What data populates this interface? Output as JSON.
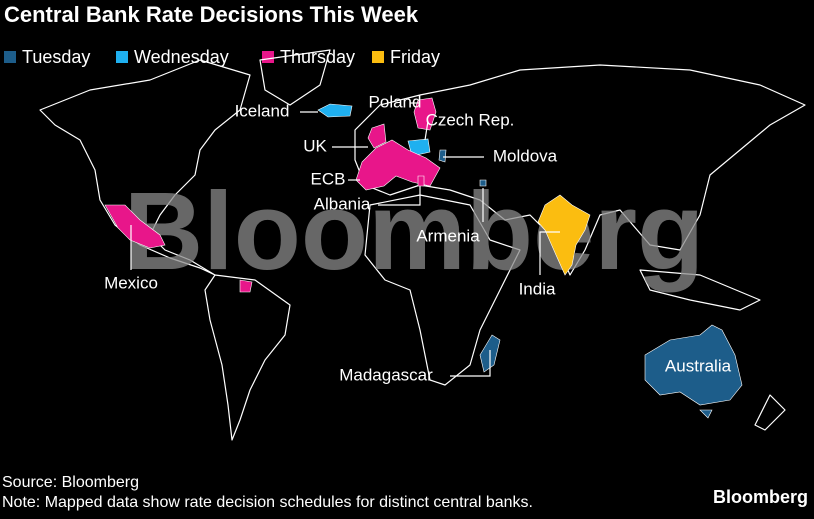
{
  "header": {
    "title": "Central Bank Rate Decisions This Week"
  },
  "legend": [
    {
      "label": "Tuesday",
      "color": "#1d5d8a"
    },
    {
      "label": "Wednesday",
      "color": "#1fb0f0"
    },
    {
      "label": "Thursday",
      "color": "#e8168a"
    },
    {
      "label": "Friday",
      "color": "#fbbd10"
    }
  ],
  "regions": [
    {
      "label": "Iceland",
      "color": "#1fb0f0"
    },
    {
      "label": "Poland",
      "color": "#e8168a"
    },
    {
      "label": "Czech Rep.",
      "color": "#1fb0f0"
    },
    {
      "label": "UK",
      "color": "#e8168a"
    },
    {
      "label": "Moldova",
      "color": "#1d5d8a"
    },
    {
      "label": "ECB",
      "color": "#e8168a"
    },
    {
      "label": "Albania",
      "color": "#e8168a"
    },
    {
      "label": "Armenia",
      "color": "#1d5d8a"
    },
    {
      "label": "India",
      "color": "#fbbd10"
    },
    {
      "label": "Mexico",
      "color": "#e8168a"
    },
    {
      "label": "Madagascar",
      "color": "#1d5d8a"
    },
    {
      "label": "Australia",
      "color": "#1d5d8a"
    }
  ],
  "watermark": "Bloomberg",
  "footer": {
    "source": "Source: Bloomberg",
    "note": "Note: Mapped data show rate decision schedules for distinct central banks.",
    "brand": "Bloomberg"
  }
}
